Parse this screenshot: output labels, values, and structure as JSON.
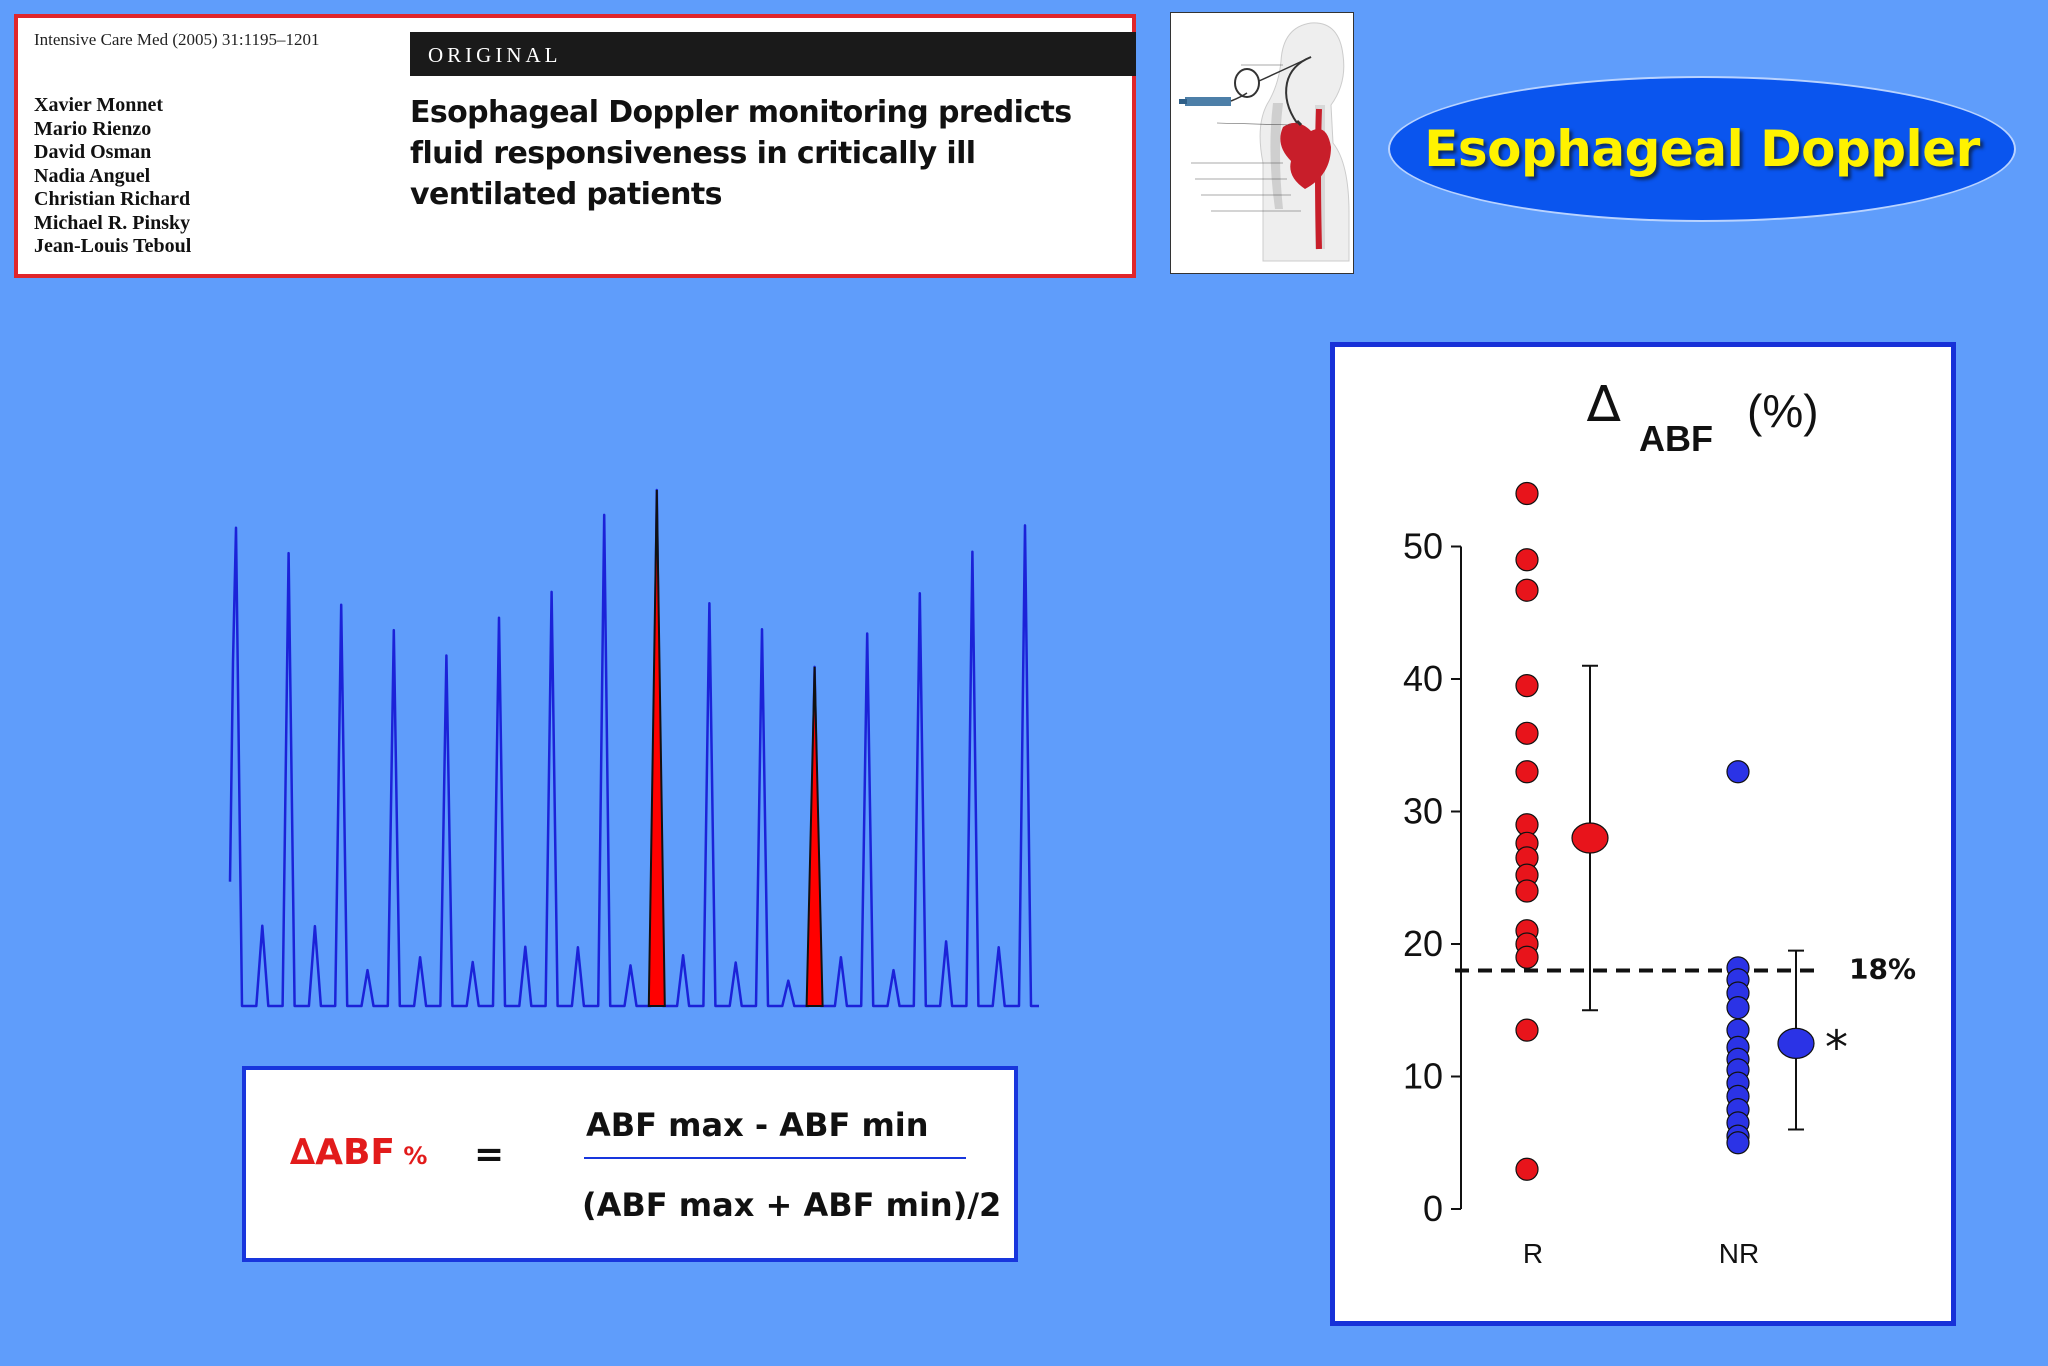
{
  "citation": {
    "journal": "Intensive Care Med (2005) 31:1195–1201",
    "section": "ORIGINAL",
    "authors": [
      "Xavier Monnet",
      "Mario Rienzo",
      "David Osman",
      "Nadia Anguel",
      "Christian Richard",
      "Michael R. Pinsky",
      "Jean-Louis Teboul"
    ],
    "title": "Esophageal Doppler monitoring predicts fluid responsiveness in critically ill ventilated patients"
  },
  "slide_title": "Esophageal Doppler",
  "formula": {
    "lhs_delta": "∆",
    "lhs_main": "ABF",
    "lhs_sub": " %",
    "equals": "=",
    "numerator": "ABF max - ABF min",
    "denominator": "(ABF max + ABF min)/2"
  },
  "colors": {
    "background": "#5f9dfb",
    "responders": "#e8141b",
    "non_responders": "#2b33e6",
    "waveform": "#1b22d8",
    "highlight": "#ff0000"
  },
  "chart_data": [
    {
      "type": "line",
      "name": "esophageal-doppler-waveform",
      "title": "",
      "beat_peaks": [
        100,
        94.7,
        83.9,
        78.6,
        73.3,
        81.2,
        86.6,
        102.7,
        107.9,
        84.2,
        78.8,
        70.9,
        77.9,
        86.3,
        95,
        100.5
      ],
      "interbeat_minor_peaks": [
        16.8,
        16.7,
        7.5,
        10.2,
        9.2,
        12.4,
        12.3,
        8.5,
        10.6,
        9.1,
        5.3,
        10.2,
        7.5,
        13.5,
        12.3
      ],
      "highlighted_beats": {
        "max_index": 8,
        "min_index": 11
      },
      "grid": false
    },
    {
      "type": "scatter",
      "title_delta": "∆",
      "title_sub": "ABF",
      "title_unit": "(%)",
      "categories": [
        "R",
        "NR"
      ],
      "ylim": [
        0,
        50
      ],
      "yticks": [
        0,
        10,
        20,
        30,
        40,
        50
      ],
      "series": [
        {
          "category": "R",
          "values": [
            54,
            49,
            46.7,
            39.5,
            35.9,
            33,
            29,
            27.6,
            26.5,
            25.2,
            24,
            21,
            20,
            19,
            13.5,
            3
          ]
        },
        {
          "category": "NR",
          "values": [
            33,
            18.2,
            17.3,
            16.3,
            15.2,
            13.5,
            12.2,
            11.3,
            10.5,
            9.5,
            8.5,
            7.5,
            6.5,
            5.5,
            5
          ]
        }
      ],
      "summary": [
        {
          "category": "R",
          "mean": 28,
          "low": 15,
          "high": 41
        },
        {
          "category": "NR",
          "mean": 12.5,
          "low": 6,
          "high": 19.5
        }
      ],
      "threshold": {
        "value": 18,
        "label": "18%"
      },
      "significance": "*",
      "grid": false
    }
  ]
}
